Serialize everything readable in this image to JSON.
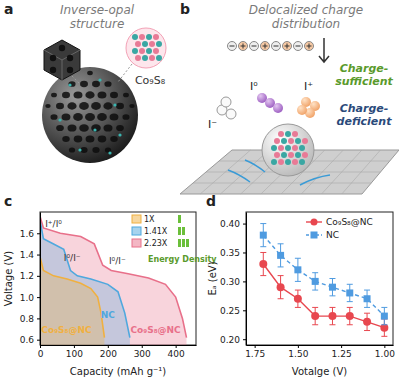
{
  "panels": [
    {
      "label": "a",
      "title": [
        "Inverse-opal",
        "structure"
      ],
      "texts": [
        "Co₉S₈"
      ]
    },
    {
      "label": "b",
      "title": [
        "Delocalized charge",
        "distribution"
      ],
      "texts": [
        "I⁻",
        "I⁰",
        "I⁺"
      ],
      "charge_sufficient": [
        "Charge-",
        "sufficient"
      ],
      "charge_deficient": [
        "Charge-",
        "deficient"
      ]
    },
    {
      "label": "c"
    },
    {
      "label": "d"
    }
  ],
  "chart_data": [
    {
      "type": "area",
      "x_label": "Capacity (mAh g⁻¹)",
      "y_label": "Voltage (V)",
      "xlim": [
        0,
        460
      ],
      "xticks": [
        0,
        100,
        200,
        300,
        400
      ],
      "ylim": [
        0.55,
        1.8
      ],
      "yticks": [
        0.6,
        0.8,
        {
          "value": 1,
          "label": "1.0"
        },
        1.2,
        1.4,
        1.6
      ],
      "legend": "upper right",
      "series": [
        {
          "name": "1X",
          "label": "Co₉S₈@NC",
          "color": "#f0b040",
          "x": [
            0,
            10,
            40,
            80,
            120,
            150,
            170,
            180,
            190
          ],
          "values": [
            1.38,
            1.25,
            1.2,
            1.17,
            1.13,
            1.08,
            1.0,
            0.85,
            0.62
          ]
        },
        {
          "name": "1.41X",
          "label": "NC",
          "color": "#4fa8de",
          "x": [
            0,
            10,
            40,
            70,
            90,
            110,
            150,
            200,
            230,
            250,
            265
          ],
          "values": [
            1.72,
            1.55,
            1.5,
            1.45,
            1.25,
            1.2,
            1.17,
            1.12,
            1.05,
            0.85,
            0.62
          ]
        },
        {
          "name": "2.23X",
          "label": "Co₉S₈@NC",
          "color": "#e8708a",
          "x": [
            0,
            10,
            60,
            120,
            160,
            185,
            210,
            260,
            320,
            370,
            400,
            420,
            432
          ],
          "values": [
            1.76,
            1.65,
            1.6,
            1.57,
            1.5,
            1.3,
            1.25,
            1.22,
            1.18,
            1.12,
            1.0,
            0.8,
            0.62
          ]
        }
      ],
      "annotations": [
        "I⁺/I⁰",
        "I⁰/I⁻",
        "I⁰/I⁻",
        "Energy Density"
      ]
    },
    {
      "type": "line",
      "x_label": "Votalge (V)",
      "y_label": "Eₐ (eV)",
      "xlim": [
        1.8,
        0.95
      ],
      "xticks": [
        1.75,
        {
          "value": 1.5,
          "label": "1.50"
        },
        1.25,
        {
          "value": 1,
          "label": "1.00"
        }
      ],
      "ylim": [
        0.19,
        0.42
      ],
      "yticks": [
        {
          "value": 0.2,
          "label": "0.20"
        },
        0.25,
        {
          "value": 0.3,
          "label": "0.30"
        },
        0.35,
        {
          "value": 0.4,
          "label": "0.40"
        }
      ],
      "legend": "upper right",
      "series": [
        {
          "name": "Co₉S₈@NC",
          "color": "#e8474f",
          "marker": "circle",
          "line_style": "solid",
          "x": [
            1.7,
            1.6,
            1.5,
            1.4,
            1.3,
            1.2,
            1.1,
            1.0
          ],
          "values": [
            0.33,
            0.29,
            0.27,
            0.24,
            0.24,
            0.24,
            0.23,
            0.22
          ],
          "errors": [
            0.02,
            0.02,
            0.015,
            0.015,
            0.015,
            0.015,
            0.015,
            0.015
          ]
        },
        {
          "name": "NC",
          "color": "#4f9be0",
          "marker": "square",
          "line_style": "dashed",
          "x": [
            1.7,
            1.6,
            1.5,
            1.4,
            1.3,
            1.2,
            1.1,
            1.0
          ],
          "values": [
            0.38,
            0.345,
            0.32,
            0.3,
            0.29,
            0.28,
            0.27,
            0.24
          ],
          "errors": [
            0.02,
            0.02,
            0.02,
            0.015,
            0.015,
            0.015,
            0.015,
            0.015
          ]
        }
      ]
    }
  ]
}
